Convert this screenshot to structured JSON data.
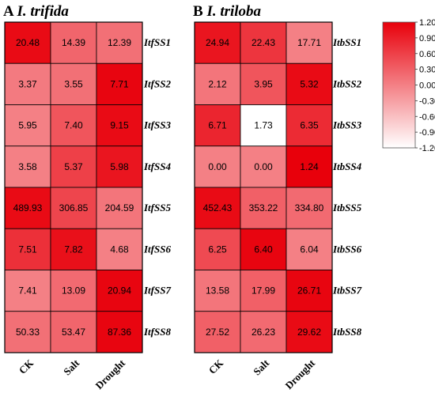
{
  "colors": {
    "low": "#ffffff",
    "high": "#e8000b",
    "grid": "#000000"
  },
  "chart_data": [
    {
      "type": "heatmap",
      "panel_letter": "A",
      "title": "I. trifida",
      "columns": [
        "CK",
        "Salt",
        "Drought"
      ],
      "rows": [
        "ItfSS1",
        "ItfSS2",
        "ItfSS3",
        "ItfSS4",
        "ItfSS5",
        "ItfSS6",
        "ItfSS7",
        "ItfSS8"
      ],
      "values": [
        [
          "20.48",
          "14.39",
          "12.39"
        ],
        [
          "3.37",
          "3.55",
          "7.71"
        ],
        [
          "5.95",
          "7.40",
          "9.15"
        ],
        [
          "3.58",
          "5.37",
          "5.98"
        ],
        [
          "489.93",
          "306.85",
          "204.59"
        ],
        [
          "7.51",
          "7.82",
          "4.68"
        ],
        [
          "7.41",
          "13.09",
          "20.94"
        ],
        [
          "50.33",
          "53.47",
          "87.36"
        ]
      ],
      "intensity": [
        [
          1.1,
          0.25,
          0.15
        ],
        [
          0.05,
          0.15,
          1.15
        ],
        [
          0.0,
          0.4,
          1.1
        ],
        [
          0.0,
          0.6,
          1.0
        ],
        [
          1.1,
          0.55,
          0.1
        ],
        [
          0.75,
          1.05,
          0.0
        ],
        [
          0.0,
          0.2,
          1.15
        ],
        [
          0.15,
          0.25,
          1.15
        ]
      ]
    },
    {
      "type": "heatmap",
      "panel_letter": "B",
      "title": "I. triloba",
      "columns": [
        "CK",
        "Salt",
        "Drought"
      ],
      "rows": [
        "ItbSS1",
        "ItbSS2",
        "ItbSS3",
        "ItbSS4",
        "ItbSS5",
        "ItbSS6",
        "ItbSS7",
        "ItbSS8"
      ],
      "values": [
        [
          "24.94",
          "22.43",
          "17.71"
        ],
        [
          "2.12",
          "3.95",
          "5.32"
        ],
        [
          "6.71",
          "1.73",
          "6.35"
        ],
        [
          "0.00",
          "0.00",
          "1.24"
        ],
        [
          "452.43",
          "353.22",
          "334.80"
        ],
        [
          "6.25",
          "6.40",
          "6.04"
        ],
        [
          "13.58",
          "17.99",
          "26.71"
        ],
        [
          "27.52",
          "26.23",
          "29.62"
        ]
      ],
      "intensity": [
        [
          1.0,
          0.7,
          0.0
        ],
        [
          0.1,
          0.4,
          1.1
        ],
        [
          0.85,
          -1.2,
          0.8
        ],
        [
          0.0,
          0.0,
          1.2
        ],
        [
          1.1,
          0.3,
          0.2
        ],
        [
          0.5,
          1.15,
          0.0
        ],
        [
          0.1,
          0.3,
          1.15
        ],
        [
          0.3,
          0.2,
          1.1
        ]
      ]
    }
  ],
  "colorbar": {
    "min": -1.2,
    "max": 1.2,
    "ticks": [
      "1.20",
      "0.90",
      "0.60",
      "0.30",
      "0.00",
      "-0.30",
      "-0.60",
      "-0.90",
      "-1.20"
    ]
  }
}
